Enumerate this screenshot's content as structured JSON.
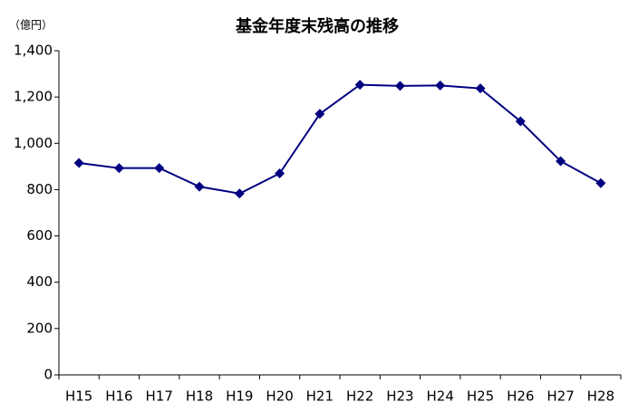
{
  "chart_data": {
    "type": "line",
    "title": "基金年度末残高の推移",
    "y_label": "（億円）",
    "categories": [
      "H15",
      "H16",
      "H17",
      "H18",
      "H19",
      "H20",
      "H21",
      "H22",
      "H23",
      "H24",
      "H25",
      "H26",
      "H27",
      "H28"
    ],
    "values": [
      915,
      893,
      893,
      813,
      783,
      870,
      1127,
      1253,
      1248,
      1250,
      1237,
      1095,
      923,
      828
    ],
    "color": "#000080",
    "ylim": [
      0,
      1400
    ],
    "yticks": [
      0,
      200,
      400,
      600,
      800,
      {
        "value": 1000,
        "label": "1,000"
      },
      {
        "value": 1200,
        "label": "1,200"
      },
      {
        "value": 1400,
        "label": "1,400"
      }
    ],
    "grid": false
  }
}
